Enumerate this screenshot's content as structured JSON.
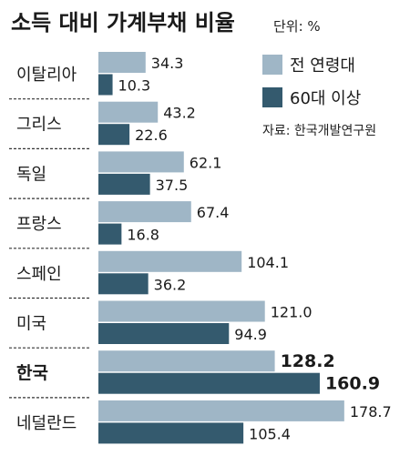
{
  "chart_data": {
    "type": "bar",
    "orientation": "horizontal",
    "title": "소득 대비 가계부채 비율",
    "unit_label": "단위: %",
    "source": "자료: 한국개발연구원",
    "categories": [
      "이탈리아",
      "그리스",
      "독일",
      "프랑스",
      "스페인",
      "미국",
      "한국",
      "네덜란드"
    ],
    "highlight_category": "한국",
    "series": [
      {
        "name": "전 연령대",
        "color": "#9fb6c6",
        "values": [
          34.3,
          43.2,
          62.1,
          67.4,
          104.1,
          121.0,
          128.2,
          178.7
        ],
        "labels": [
          "34.3",
          "43.2",
          "62.1",
          "67.4",
          "104.1",
          "121.0",
          "128.2",
          "178.7"
        ]
      },
      {
        "name": "60대 이상",
        "color": "#345a6e",
        "values": [
          10.3,
          22.6,
          37.5,
          16.8,
          36.2,
          94.9,
          160.9,
          105.4
        ],
        "labels": [
          "10.3",
          "22.6",
          "37.5",
          "16.8",
          "36.2",
          "94.9",
          "160.9",
          "105.4"
        ]
      }
    ],
    "legend_position": "top-right",
    "grid": false
  }
}
